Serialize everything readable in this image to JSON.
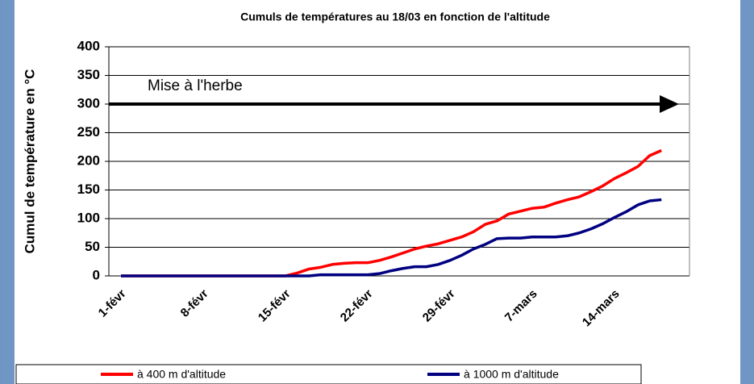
{
  "chart_data": {
    "type": "line",
    "title": "Cumuls de températures au 18/03 en fonction de l'altitude",
    "y_label": "Cumul de température en °C",
    "categories": [
      "1-févr",
      null,
      null,
      null,
      null,
      null,
      null,
      "8-févr",
      null,
      null,
      null,
      null,
      null,
      null,
      "15-févr",
      null,
      null,
      null,
      null,
      null,
      null,
      "22-févr",
      null,
      null,
      null,
      null,
      null,
      null,
      "29-févr",
      null,
      null,
      null,
      null,
      null,
      null,
      "7-mars",
      null,
      null,
      null,
      null,
      null,
      null,
      "14-mars",
      null,
      null,
      null,
      null
    ],
    "series": [
      {
        "name": "à 400 m d'altitude",
        "color": "#ff0000",
        "values": [
          0,
          0,
          0,
          0,
          0,
          0,
          0,
          0,
          0,
          0,
          0,
          0,
          0,
          0,
          0,
          5,
          12,
          15,
          20,
          22,
          23,
          23,
          27,
          33,
          40,
          47,
          52,
          56,
          62,
          68,
          77,
          90,
          96,
          108,
          113,
          118,
          120,
          127,
          133,
          138,
          147,
          157,
          170,
          180,
          191,
          210,
          219
        ]
      },
      {
        "name": "à 1000 m d'altitude",
        "color": "#000080",
        "values": [
          0,
          0,
          0,
          0,
          0,
          0,
          0,
          0,
          0,
          0,
          0,
          0,
          0,
          0,
          0,
          0,
          0,
          2,
          2,
          2,
          2,
          2,
          4,
          9,
          13,
          16,
          16,
          20,
          27,
          36,
          47,
          55,
          65,
          66,
          66,
          68,
          68,
          68,
          70,
          75,
          82,
          91,
          102,
          112,
          124,
          131,
          133
        ]
      }
    ],
    "ylim": [
      0,
      400
    ],
    "yticks": [
      0,
      50,
      100,
      150,
      200,
      250,
      300,
      350,
      400
    ],
    "grid": true,
    "annotation": {
      "text": "Mise à l'herbe",
      "value": 300
    },
    "legend": "bottom"
  }
}
